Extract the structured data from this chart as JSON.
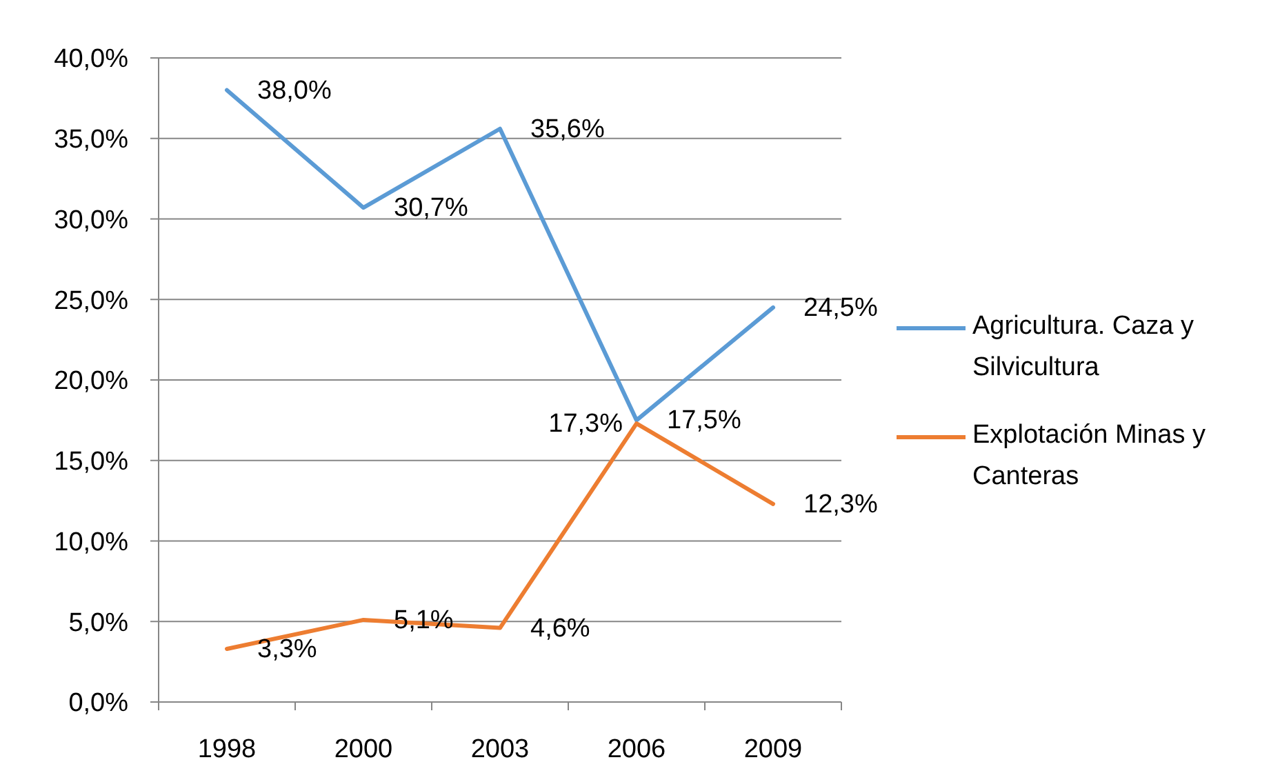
{
  "chart_data": {
    "type": "line",
    "categories": [
      "1998",
      "2000",
      "2003",
      "2006",
      "2009"
    ],
    "series": [
      {
        "name": "Agricultura. Caza y Silvicultura",
        "color": "#5b9bd5",
        "values": [
          38.0,
          30.7,
          35.6,
          17.5,
          24.5
        ],
        "value_labels": [
          "38,0%",
          "30,7%",
          "35,6%",
          "17,5%",
          "24,5%"
        ]
      },
      {
        "name": "Explotación Minas y Canteras",
        "color": "#ed7d31",
        "values": [
          3.3,
          5.1,
          4.6,
          17.3,
          12.3
        ],
        "value_labels": [
          "3,3%",
          "5,1%",
          "4,6%",
          "17,3%",
          "12,3%"
        ]
      }
    ],
    "ylim": [
      0,
      40
    ],
    "yticks": [
      {
        "value": 0,
        "label": "0,0%"
      },
      {
        "value": 5,
        "label": "5,0%"
      },
      {
        "value": 10,
        "label": "10,0%"
      },
      {
        "value": 15,
        "label": "15,0%"
      },
      {
        "value": 20,
        "label": "20,0%"
      },
      {
        "value": 25,
        "label": "25,0%"
      },
      {
        "value": 30,
        "label": "30,0%"
      },
      {
        "value": 35,
        "label": "35,0%"
      },
      {
        "value": 40,
        "label": "40,0%"
      }
    ],
    "grid": "y",
    "legend": "right",
    "marker": "none",
    "line_style": "solid"
  }
}
